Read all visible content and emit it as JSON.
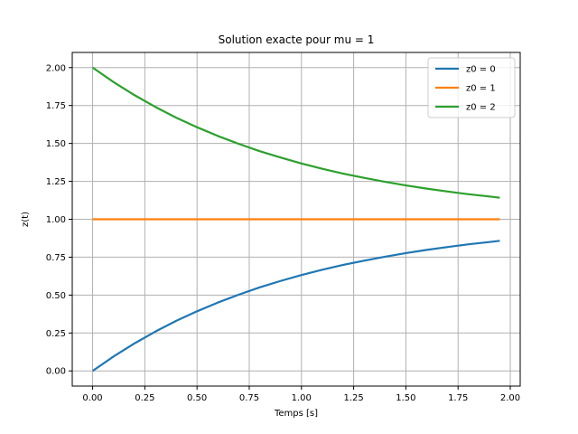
{
  "chart_data": {
    "type": "line",
    "title": "Solution exacte pour mu = 1",
    "xlabel": "Temps [s]",
    "ylabel": "z(t)",
    "xlim": [
      -0.0975,
      2.0475
    ],
    "ylim": [
      -0.1,
      2.1
    ],
    "xticks": [
      0.0,
      0.25,
      0.5,
      0.75,
      1.0,
      1.25,
      1.5,
      1.75,
      2.0
    ],
    "xtick_labels": [
      "0.00",
      "0.25",
      "0.50",
      "0.75",
      "1.00",
      "1.25",
      "1.50",
      "1.75",
      "2.00"
    ],
    "yticks": [
      0.0,
      0.25,
      0.5,
      0.75,
      1.0,
      1.25,
      1.5,
      1.75,
      2.0
    ],
    "ytick_labels": [
      "0.00",
      "0.25",
      "0.50",
      "0.75",
      "1.00",
      "1.25",
      "1.50",
      "1.75",
      "2.00"
    ],
    "grid": true,
    "legend_position": "top-right",
    "x": [
      0.0,
      0.1,
      0.2,
      0.3,
      0.4,
      0.5,
      0.6,
      0.7,
      0.8,
      0.9,
      1.0,
      1.1,
      1.2,
      1.3,
      1.4,
      1.5,
      1.6,
      1.7,
      1.8,
      1.9,
      1.95
    ],
    "series": [
      {
        "name": "z0 = 0",
        "color": "#1f77b4",
        "values": [
          0.0,
          0.095,
          0.181,
          0.259,
          0.33,
          0.393,
          0.451,
          0.503,
          0.551,
          0.593,
          0.632,
          0.667,
          0.699,
          0.727,
          0.753,
          0.777,
          0.798,
          0.817,
          0.835,
          0.85,
          0.858
        ]
      },
      {
        "name": "z0 = 1",
        "color": "#ff7f0e",
        "values": [
          1.0,
          1.0,
          1.0,
          1.0,
          1.0,
          1.0,
          1.0,
          1.0,
          1.0,
          1.0,
          1.0,
          1.0,
          1.0,
          1.0,
          1.0,
          1.0,
          1.0,
          1.0,
          1.0,
          1.0,
          1.0
        ]
      },
      {
        "name": "z0 = 2",
        "color": "#2ca02c",
        "values": [
          2.0,
          1.905,
          1.819,
          1.741,
          1.67,
          1.607,
          1.549,
          1.497,
          1.449,
          1.407,
          1.368,
          1.333,
          1.301,
          1.273,
          1.247,
          1.223,
          1.202,
          1.183,
          1.165,
          1.15,
          1.142
        ]
      }
    ]
  }
}
